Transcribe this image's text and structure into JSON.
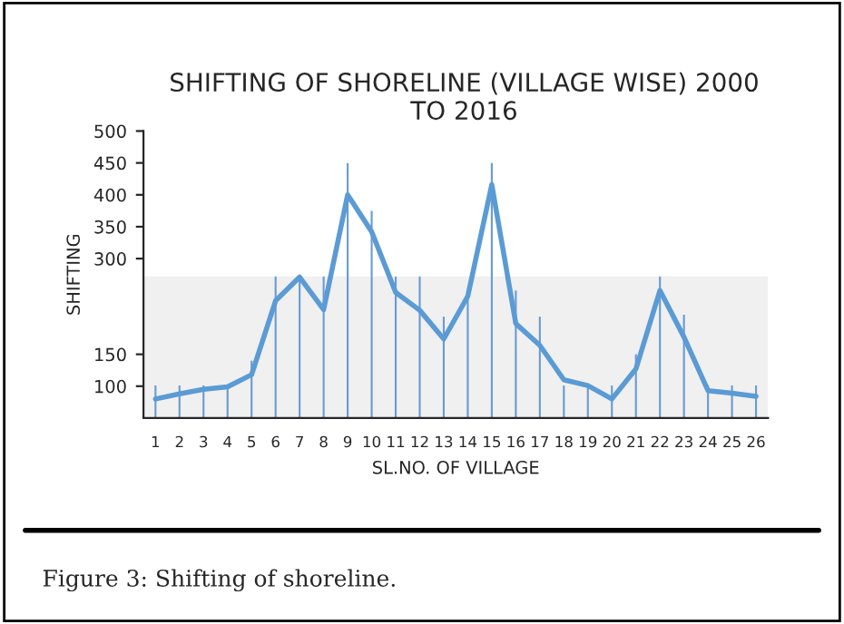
{
  "chart_data": {
    "type": "line",
    "title": "SHIFTING OF SHORELINE (VILLAGE WISE) 2000\nTO 2016",
    "xlabel": "SL.NO. OF VILLAGE",
    "ylabel": "SHIFTING",
    "categories": [
      "1",
      "2",
      "3",
      "4",
      "5",
      "6",
      "7",
      "8",
      "9",
      "10",
      "11",
      "12",
      "13",
      "14",
      "15",
      "16",
      "17",
      "18",
      "19",
      "20",
      "21",
      "22",
      "23",
      "24",
      "25",
      "26"
    ],
    "series": [
      {
        "type": "bar",
        "color": "#6a9bd1",
        "values": [
          101,
          101,
          101,
          100,
          140,
          272,
          272,
          272,
          450,
          375,
          272,
          272,
          209,
          244,
          450,
          250,
          209,
          101,
          101,
          101,
          150,
          272,
          212,
          101,
          101,
          101
        ]
      },
      {
        "color": "#5b9bd5",
        "values": [
          80,
          88,
          95,
          99,
          118,
          234,
          271,
          220,
          400,
          342,
          247,
          219,
          174,
          241,
          416,
          198,
          164,
          110,
          101,
          80,
          127,
          250,
          177,
          93,
          89,
          84
        ]
      }
    ],
    "ylim": [
      50,
      500
    ],
    "yticks": [
      100,
      150,
      300,
      350,
      400,
      450,
      500
    ],
    "bands": [
      {
        "axis": "y",
        "from": 50,
        "to": 272,
        "color": "#f0f0f0"
      }
    ],
    "grid": false,
    "legend": false,
    "annotations": [
      "Figure 3: Shifting of shoreline."
    ]
  }
}
